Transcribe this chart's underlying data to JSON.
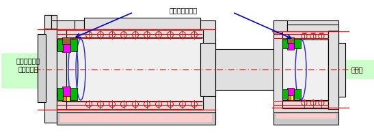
{
  "bg_color": "#ffffff",
  "label_left_text": "主軸フロント\n（工具）側",
  "label_right_text": "リア側",
  "annotation_text": "【ここに適用】",
  "label_left_bg": "#ccffcc",
  "label_right_bg": "#ccffcc",
  "centerline_color": "#cc0000",
  "arrow_color": "#0000cc",
  "red_line_color": "#ff0000",
  "magenta_color": "#ff00ff",
  "green_color": "#00bb00",
  "orange_color": "#ff8800",
  "yellow_color": "#ffff00",
  "dark_brown": "#996633",
  "body_gray": "#e0e0e0",
  "body_light": "#f0f0f0",
  "body_dark": "#c8c8c8"
}
